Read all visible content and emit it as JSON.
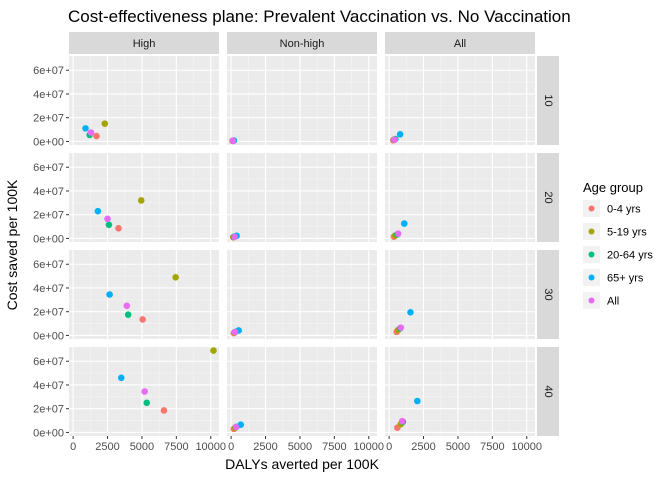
{
  "chart_data": {
    "type": "scatter",
    "title": "Cost-effectiveness plane: Prevalent Vaccination vs. No Vaccination",
    "xlabel": "DALYs averted per 100K",
    "ylabel": "Cost saved per 100K",
    "xlim": [
      -300,
      10600
    ],
    "ylim": [
      -3000000,
      72000000
    ],
    "x_ticks": [
      0,
      2500,
      5000,
      7500,
      10000
    ],
    "x_tick_labels": [
      "0",
      "2500",
      "5000",
      "7500",
      "10000"
    ],
    "y_ticks": [
      0,
      20000000,
      40000000,
      60000000
    ],
    "y_tick_labels": [
      "0e+00",
      "2e+07",
      "4e+07",
      "6e+07"
    ],
    "grid": true,
    "col_facets": [
      "High",
      "Non-high",
      "All"
    ],
    "row_facets": [
      "10",
      "20",
      "30",
      "40"
    ],
    "legend": {
      "title": "Age group",
      "position": "right",
      "entries": [
        {
          "label": "0-4 yrs",
          "color": "#F8766D"
        },
        {
          "label": "5-19 yrs",
          "color": "#A3A500"
        },
        {
          "label": "20-64 yrs",
          "color": "#00BF7D"
        },
        {
          "label": "65+ yrs",
          "color": "#00B0F6"
        },
        {
          "label": "All",
          "color": "#E76BF3"
        }
      ]
    },
    "points": [
      {
        "row": "10",
        "col": "High",
        "group": "0-4 yrs",
        "x": 1700,
        "y": 4500000
      },
      {
        "row": "10",
        "col": "High",
        "group": "5-19 yrs",
        "x": 2300,
        "y": 15000000
      },
      {
        "row": "10",
        "col": "High",
        "group": "20-64 yrs",
        "x": 1200,
        "y": 5500000
      },
      {
        "row": "10",
        "col": "High",
        "group": "65+ yrs",
        "x": 900,
        "y": 11000000
      },
      {
        "row": "10",
        "col": "High",
        "group": "All",
        "x": 1300,
        "y": 7500000
      },
      {
        "row": "10",
        "col": "Non-high",
        "group": "0-4 yrs",
        "x": 100,
        "y": 400000
      },
      {
        "row": "10",
        "col": "Non-high",
        "group": "5-19 yrs",
        "x": 120,
        "y": 500000
      },
      {
        "row": "10",
        "col": "Non-high",
        "group": "20-64 yrs",
        "x": 150,
        "y": 600000
      },
      {
        "row": "10",
        "col": "Non-high",
        "group": "65+ yrs",
        "x": 200,
        "y": 800000
      },
      {
        "row": "10",
        "col": "Non-high",
        "group": "All",
        "x": 130,
        "y": 550000
      },
      {
        "row": "10",
        "col": "All",
        "group": "0-4 yrs",
        "x": 300,
        "y": 1000000
      },
      {
        "row": "10",
        "col": "All",
        "group": "5-19 yrs",
        "x": 350,
        "y": 1500000
      },
      {
        "row": "10",
        "col": "All",
        "group": "20-64 yrs",
        "x": 450,
        "y": 2000000
      },
      {
        "row": "10",
        "col": "All",
        "group": "65+ yrs",
        "x": 800,
        "y": 6000000
      },
      {
        "row": "10",
        "col": "All",
        "group": "All",
        "x": 400,
        "y": 1500000
      },
      {
        "row": "20",
        "col": "High",
        "group": "0-4 yrs",
        "x": 3300,
        "y": 8500000
      },
      {
        "row": "20",
        "col": "High",
        "group": "5-19 yrs",
        "x": 4950,
        "y": 32000000
      },
      {
        "row": "20",
        "col": "High",
        "group": "20-64 yrs",
        "x": 2600,
        "y": 11500000
      },
      {
        "row": "20",
        "col": "High",
        "group": "65+ yrs",
        "x": 1800,
        "y": 23000000
      },
      {
        "row": "20",
        "col": "High",
        "group": "All",
        "x": 2500,
        "y": 16500000
      },
      {
        "row": "20",
        "col": "Non-high",
        "group": "0-4 yrs",
        "x": 150,
        "y": 1000000
      },
      {
        "row": "20",
        "col": "Non-high",
        "group": "5-19 yrs",
        "x": 180,
        "y": 1200000
      },
      {
        "row": "20",
        "col": "Non-high",
        "group": "20-64 yrs",
        "x": 220,
        "y": 1500000
      },
      {
        "row": "20",
        "col": "Non-high",
        "group": "65+ yrs",
        "x": 400,
        "y": 2200000
      },
      {
        "row": "20",
        "col": "Non-high",
        "group": "All",
        "x": 250,
        "y": 1400000
      },
      {
        "row": "20",
        "col": "All",
        "group": "0-4 yrs",
        "x": 350,
        "y": 1500000
      },
      {
        "row": "20",
        "col": "All",
        "group": "5-19 yrs",
        "x": 450,
        "y": 2500000
      },
      {
        "row": "20",
        "col": "All",
        "group": "20-64 yrs",
        "x": 600,
        "y": 3500000
      },
      {
        "row": "20",
        "col": "All",
        "group": "65+ yrs",
        "x": 1100,
        "y": 12500000
      },
      {
        "row": "20",
        "col": "All",
        "group": "All",
        "x": 650,
        "y": 4000000
      },
      {
        "row": "30",
        "col": "High",
        "group": "0-4 yrs",
        "x": 5050,
        "y": 13500000
      },
      {
        "row": "30",
        "col": "High",
        "group": "5-19 yrs",
        "x": 7450,
        "y": 49000000
      },
      {
        "row": "30",
        "col": "High",
        "group": "20-64 yrs",
        "x": 4000,
        "y": 17500000
      },
      {
        "row": "30",
        "col": "High",
        "group": "65+ yrs",
        "x": 2650,
        "y": 34500000
      },
      {
        "row": "30",
        "col": "High",
        "group": "All",
        "x": 3900,
        "y": 25000000
      },
      {
        "row": "30",
        "col": "Non-high",
        "group": "0-4 yrs",
        "x": 200,
        "y": 2000000
      },
      {
        "row": "30",
        "col": "Non-high",
        "group": "5-19 yrs",
        "x": 250,
        "y": 2500000
      },
      {
        "row": "30",
        "col": "Non-high",
        "group": "20-64 yrs",
        "x": 300,
        "y": 3000000
      },
      {
        "row": "30",
        "col": "Non-high",
        "group": "65+ yrs",
        "x": 550,
        "y": 4200000
      },
      {
        "row": "30",
        "col": "Non-high",
        "group": "All",
        "x": 280,
        "y": 2800000
      },
      {
        "row": "30",
        "col": "All",
        "group": "0-4 yrs",
        "x": 550,
        "y": 3000000
      },
      {
        "row": "30",
        "col": "All",
        "group": "5-19 yrs",
        "x": 650,
        "y": 4500000
      },
      {
        "row": "30",
        "col": "All",
        "group": "20-64 yrs",
        "x": 800,
        "y": 6000000
      },
      {
        "row": "30",
        "col": "All",
        "group": "65+ yrs",
        "x": 1550,
        "y": 19500000
      },
      {
        "row": "30",
        "col": "All",
        "group": "All",
        "x": 850,
        "y": 6500000
      },
      {
        "row": "40",
        "col": "High",
        "group": "0-4 yrs",
        "x": 6600,
        "y": 18500000
      },
      {
        "row": "40",
        "col": "High",
        "group": "5-19 yrs",
        "x": 10200,
        "y": 69000000
      },
      {
        "row": "40",
        "col": "High",
        "group": "20-64 yrs",
        "x": 5350,
        "y": 25000000
      },
      {
        "row": "40",
        "col": "High",
        "group": "65+ yrs",
        "x": 3500,
        "y": 46000000
      },
      {
        "row": "40",
        "col": "High",
        "group": "All",
        "x": 5200,
        "y": 34500000
      },
      {
        "row": "40",
        "col": "Non-high",
        "group": "0-4 yrs",
        "x": 200,
        "y": 3000000
      },
      {
        "row": "40",
        "col": "Non-high",
        "group": "5-19 yrs",
        "x": 280,
        "y": 3800000
      },
      {
        "row": "40",
        "col": "Non-high",
        "group": "20-64 yrs",
        "x": 380,
        "y": 4800000
      },
      {
        "row": "40",
        "col": "Non-high",
        "group": "65+ yrs",
        "x": 700,
        "y": 6500000
      },
      {
        "row": "40",
        "col": "Non-high",
        "group": "All",
        "x": 350,
        "y": 4500000
      },
      {
        "row": "40",
        "col": "All",
        "group": "0-4 yrs",
        "x": 600,
        "y": 4000000
      },
      {
        "row": "40",
        "col": "All",
        "group": "5-19 yrs",
        "x": 850,
        "y": 7000000
      },
      {
        "row": "40",
        "col": "All",
        "group": "20-64 yrs",
        "x": 1000,
        "y": 9000000
      },
      {
        "row": "40",
        "col": "All",
        "group": "65+ yrs",
        "x": 2050,
        "y": 26500000
      },
      {
        "row": "40",
        "col": "All",
        "group": "All",
        "x": 950,
        "y": 9500000
      }
    ]
  }
}
